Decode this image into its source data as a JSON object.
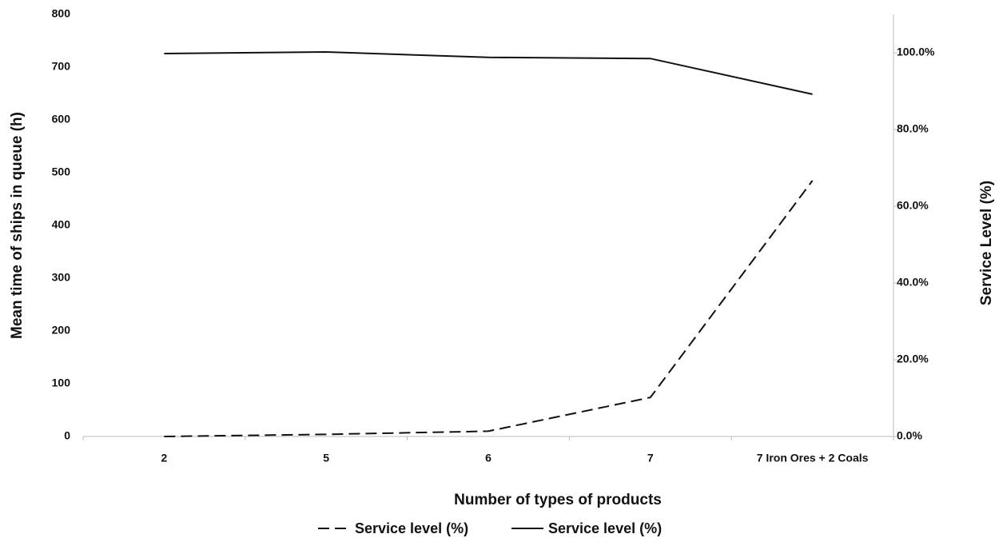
{
  "chart_data": {
    "type": "line",
    "x_label": "Number of  types of products",
    "y_label": "Mean time of ships in queue (h)",
    "y2_label": "Service Level (%)",
    "categories": [
      "2",
      "5",
      "6",
      "7",
      "7 Iron Ores + 2 Coals"
    ],
    "series": [
      {
        "name": "Service level (%)",
        "color": "#111111",
        "dash": true,
        "values": [
          0,
          4,
          10,
          74,
          485
        ]
      },
      {
        "name": "Service level (%)",
        "color": "#111111",
        "dash": false,
        "axis": "y2",
        "values": [
          99.8,
          100.2,
          98.8,
          98.5,
          89.2
        ]
      }
    ],
    "ylim": [
      0,
      800
    ],
    "yticks": [
      0,
      100,
      200,
      300,
      400,
      500,
      600,
      700,
      800
    ],
    "y2lim": [
      0,
      110
    ],
    "y2ticks": [
      {
        "value": 0,
        "label": "0.0%"
      },
      {
        "value": 20,
        "label": "20.0%"
      },
      {
        "value": 40,
        "label": "40.0%"
      },
      {
        "value": 60,
        "label": "60.0%"
      },
      {
        "value": 80,
        "label": "80.0%"
      },
      {
        "value": 100,
        "label": "100.0%"
      }
    ]
  }
}
